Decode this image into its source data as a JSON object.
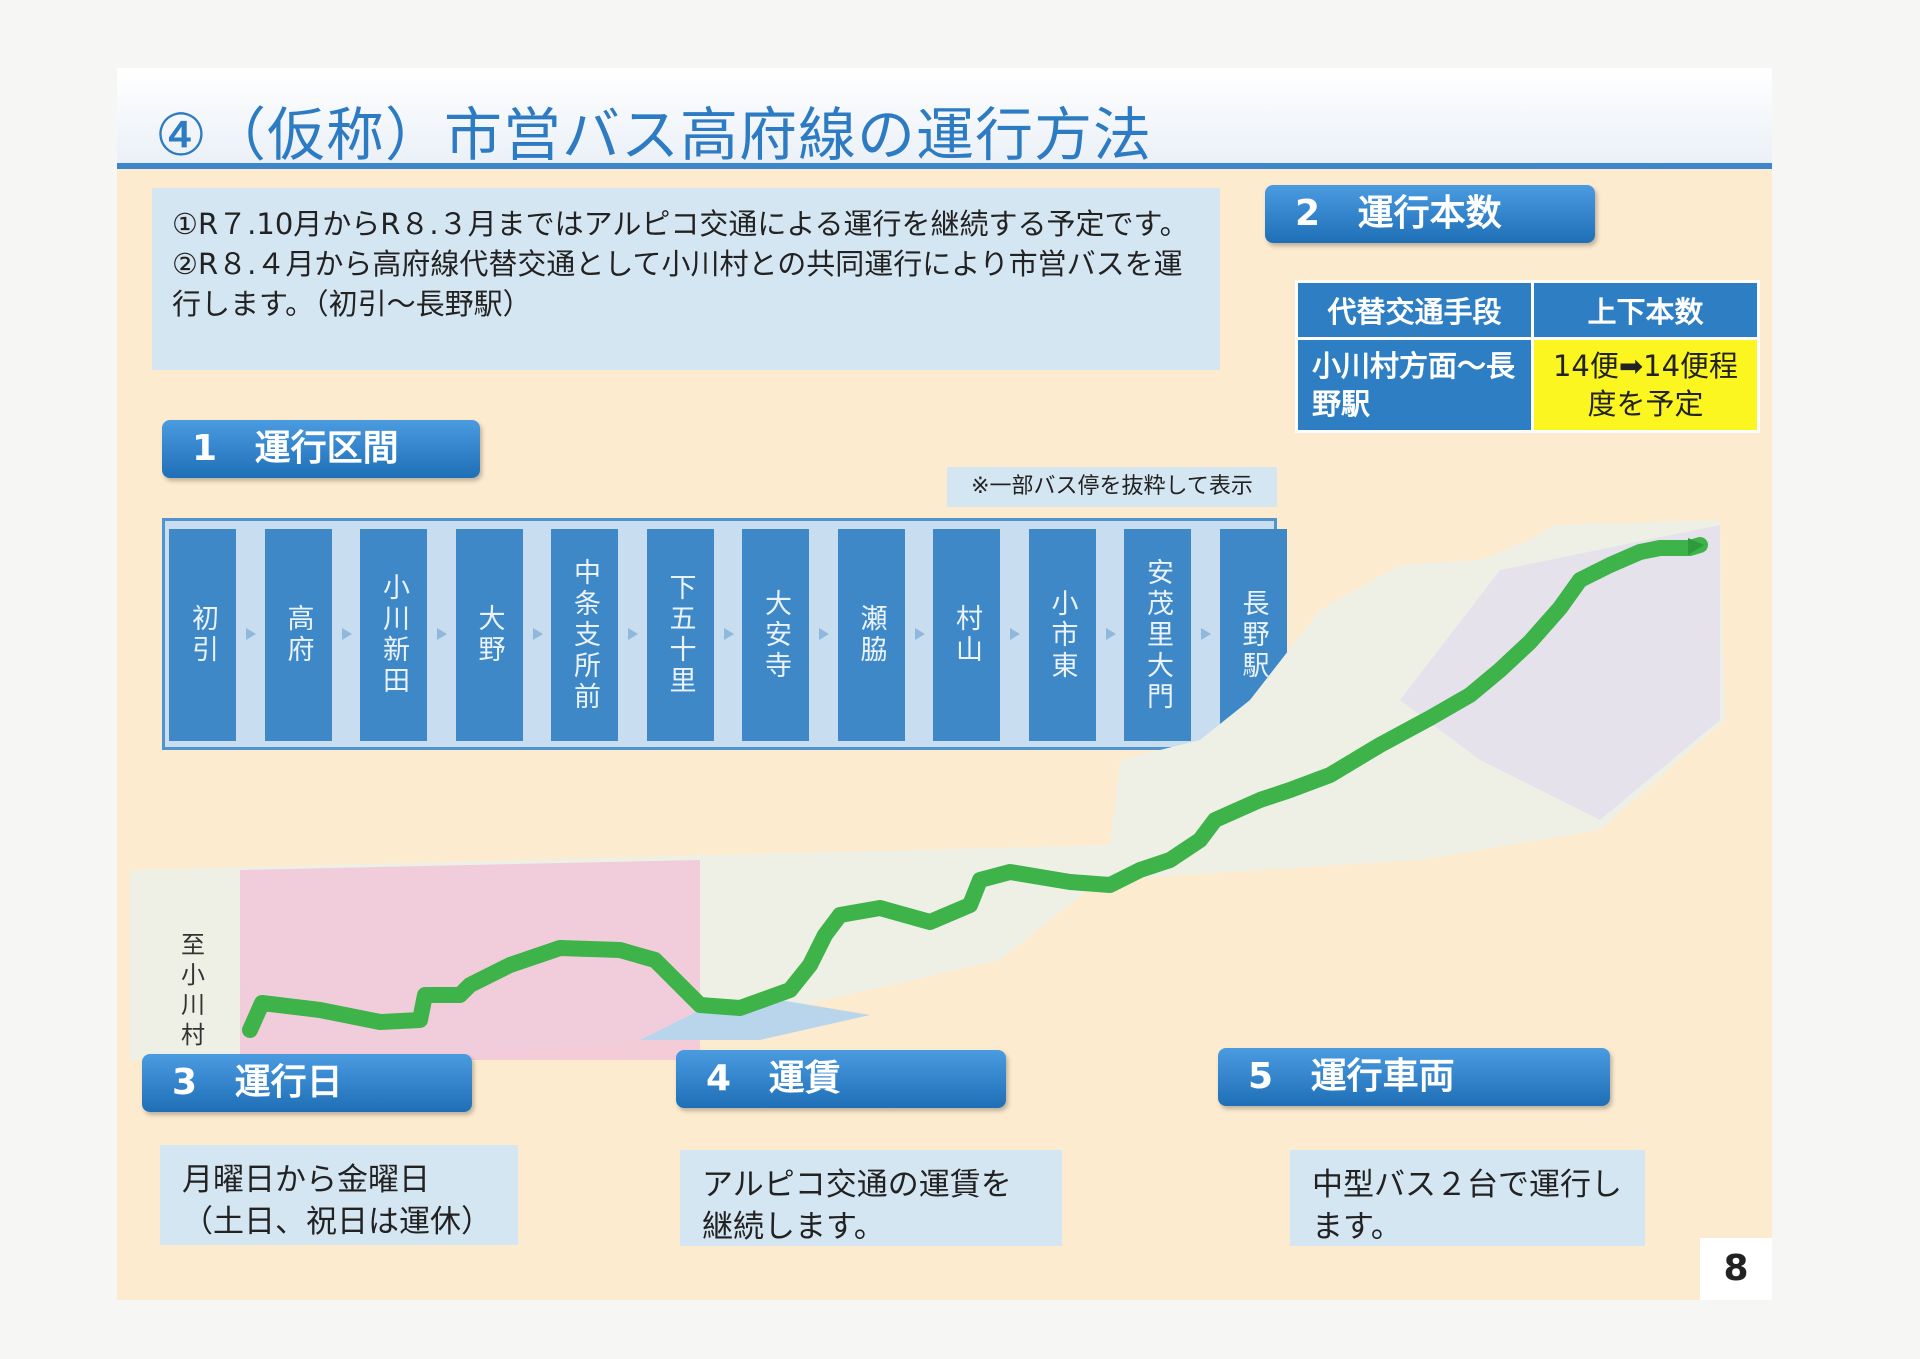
{
  "title": "④（仮称）市営バス高府線の運行方法",
  "intro": [
    "①R７.10月からR８.３月まではアルピコ交通による運行を継続する予定です。",
    "②R８.４月から高府線代替交通として小川村との共同運行により市営バスを運行します。（初引～長野駅）"
  ],
  "section1": {
    "number": "1",
    "label": "運行区間"
  },
  "section2": {
    "number": "2",
    "label": "運行本数"
  },
  "section3": {
    "number": "3",
    "label": "運行日"
  },
  "section4": {
    "number": "4",
    "label": "運賃"
  },
  "section5": {
    "number": "5",
    "label": "運行車両"
  },
  "frequency_table": {
    "headers": [
      "代替交通手段",
      "上下本数"
    ],
    "rows": [
      {
        "means": "小川村方面～長野駅",
        "count": "14便➡14便程度を予定"
      }
    ]
  },
  "stops_note": "※一部バス停を抜粋して表示",
  "stops": [
    "初引",
    "高府",
    "小川新田",
    "大野",
    "中条支所前",
    "下五十里",
    "大安寺",
    "瀬脇",
    "村山",
    "小市東",
    "安茂里大門",
    "長野駅"
  ],
  "map": {
    "direction_label": "至小川村"
  },
  "operating_days": {
    "line1": "月曜日から金曜日",
    "line2": "（土日、祝日は運休）"
  },
  "fare": "アルピコ交通の運賃を継続します。",
  "vehicles": "中型バス２台で運行します。",
  "page_number": "8",
  "colors": {
    "accent_blue": "#2e7ec4",
    "light_box": "#d5e6f3",
    "page_bg": "#fdebcf",
    "route_green": "#3db34a",
    "highlight_yellow": "#fbf520"
  }
}
